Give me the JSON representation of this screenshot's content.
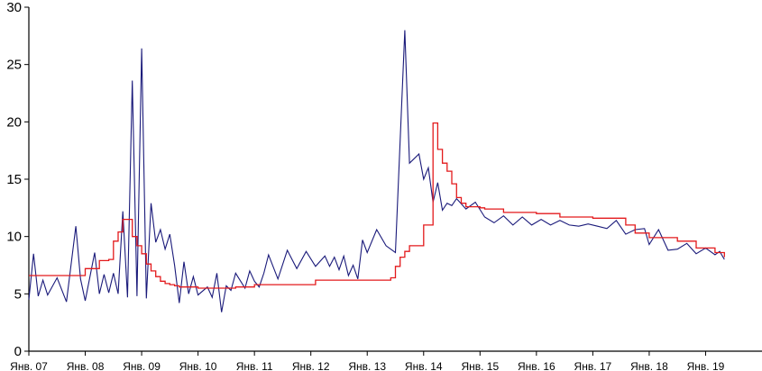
{
  "chart_data": {
    "type": "line",
    "title": "",
    "xlabel": "",
    "ylabel": "",
    "x_ticks": [
      "Янв. 07",
      "Янв. 08",
      "Янв. 09",
      "Янв. 10",
      "Янв. 11",
      "Янв. 12",
      "Янв. 13",
      "Янв. 14",
      "Янв. 15",
      "Янв. 16",
      "Янв. 17",
      "Янв. 18",
      "Янв. 19"
    ],
    "y_ticks": [
      "0",
      "5",
      "10",
      "15",
      "20",
      "25",
      "30"
    ],
    "xlim": [
      "2007-01",
      "2020-01"
    ],
    "ylim": [
      0,
      30
    ],
    "grid": false,
    "legend": "none",
    "series": [
      {
        "color": "#1a1a7a",
        "x": [
          "2007-01",
          "2007-02",
          "2007-03",
          "2007-04",
          "2007-05",
          "2007-07",
          "2007-09",
          "2007-11",
          "2007-12",
          "2008-01",
          "2008-03",
          "2008-04",
          "2008-05",
          "2008-06",
          "2008-07",
          "2008-08",
          "2008-09",
          "2008-10",
          "2008-11",
          "2008-12",
          "2009-01",
          "2009-02",
          "2009-03",
          "2009-04",
          "2009-05",
          "2009-06",
          "2009-07",
          "2009-08",
          "2009-09",
          "2009-10",
          "2009-11",
          "2009-12",
          "2010-01",
          "2010-03",
          "2010-04",
          "2010-05",
          "2010-06",
          "2010-07",
          "2010-08",
          "2010-09",
          "2010-11",
          "2010-12",
          "2011-01",
          "2011-02",
          "2011-03",
          "2011-04",
          "2011-06",
          "2011-08",
          "2011-10",
          "2011-12",
          "2012-02",
          "2012-04",
          "2012-05",
          "2012-06",
          "2012-07",
          "2012-08",
          "2012-09",
          "2012-10",
          "2012-11",
          "2012-12",
          "2013-01",
          "2013-03",
          "2013-05",
          "2013-07",
          "2013-09",
          "2013-10",
          "2013-12",
          "2014-01",
          "2014-02",
          "2014-03",
          "2014-04",
          "2014-05",
          "2014-06",
          "2014-07",
          "2014-08",
          "2014-10",
          "2014-12",
          "2015-02",
          "2015-04",
          "2015-06",
          "2015-08",
          "2015-10",
          "2015-12",
          "2016-02",
          "2016-04",
          "2016-06",
          "2016-08",
          "2016-10",
          "2016-12",
          "2017-02",
          "2017-04",
          "2017-06",
          "2017-08",
          "2017-10",
          "2017-12",
          "2018-01",
          "2018-03",
          "2018-05",
          "2018-07",
          "2018-09",
          "2018-11",
          "2019-01",
          "2019-03",
          "2019-04",
          "2019-05"
        ],
        "y": [
          4.5,
          8.5,
          4.8,
          6.2,
          4.9,
          6.4,
          4.3,
          10.9,
          6.3,
          4.4,
          8.6,
          5.0,
          6.7,
          5.1,
          6.8,
          5.0,
          12.2,
          4.7,
          23.6,
          4.8,
          26.4,
          4.6,
          12.9,
          9.5,
          10.6,
          8.9,
          10.2,
          7.5,
          4.2,
          7.8,
          5.0,
          6.5,
          4.9,
          5.6,
          4.7,
          6.8,
          3.4,
          5.7,
          5.3,
          6.8,
          5.5,
          7.0,
          6.1,
          5.6,
          6.8,
          8.4,
          6.3,
          8.8,
          7.2,
          8.7,
          7.4,
          8.3,
          7.4,
          8.2,
          7.1,
          8.3,
          6.6,
          7.5,
          6.3,
          9.7,
          8.6,
          10.6,
          9.2,
          8.6,
          28.0,
          16.4,
          17.2,
          15.0,
          16.0,
          13.0,
          14.7,
          12.3,
          12.9,
          12.7,
          13.3,
          12.4,
          13.0,
          11.7,
          11.2,
          11.8,
          11.0,
          11.7,
          11.0,
          11.5,
          11.0,
          11.4,
          11.0,
          10.9,
          11.1,
          10.9,
          10.7,
          11.4,
          10.2,
          10.6,
          10.7,
          9.3,
          10.6,
          8.8,
          8.9,
          9.4,
          8.5,
          9.0,
          8.4,
          8.7,
          8.0
        ]
      },
      {
        "color": "#e31a1c",
        "step": true,
        "x": [
          "2007-01",
          "2007-10",
          "2008-01",
          "2008-04",
          "2008-06",
          "2008-07",
          "2008-08",
          "2008-09",
          "2008-10",
          "2008-11",
          "2008-12",
          "2009-01",
          "2009-02",
          "2009-03",
          "2009-04",
          "2009-05",
          "2009-06",
          "2009-07",
          "2009-08",
          "2009-09",
          "2009-10",
          "2009-11",
          "2010-01",
          "2010-09",
          "2011-01",
          "2012-02",
          "2013-06",
          "2013-07",
          "2013-08",
          "2013-09",
          "2013-10",
          "2014-01",
          "2014-03",
          "2014-04",
          "2014-05",
          "2014-06",
          "2014-07",
          "2014-08",
          "2014-09",
          "2014-10",
          "2015-01",
          "2015-02",
          "2015-03",
          "2015-06",
          "2016-01",
          "2016-06",
          "2017-01",
          "2017-06",
          "2017-08",
          "2017-09",
          "2017-10",
          "2018-01",
          "2018-07",
          "2018-11",
          "2019-03",
          "2019-05"
        ],
        "y": [
          6.6,
          6.6,
          7.2,
          7.9,
          8.0,
          9.6,
          10.4,
          11.5,
          11.5,
          10.0,
          9.2,
          8.5,
          7.6,
          7.0,
          6.5,
          6.1,
          5.9,
          5.8,
          5.7,
          5.6,
          5.6,
          5.6,
          5.5,
          5.6,
          5.8,
          6.2,
          6.4,
          7.4,
          8.2,
          8.7,
          9.2,
          11.0,
          19.9,
          17.6,
          16.4,
          15.7,
          14.6,
          13.4,
          12.9,
          12.6,
          12.5,
          12.4,
          12.4,
          12.1,
          12.0,
          11.7,
          11.6,
          11.6,
          11.0,
          11.0,
          10.3,
          9.9,
          9.6,
          9.0,
          8.6,
          8.2
        ]
      }
    ]
  }
}
